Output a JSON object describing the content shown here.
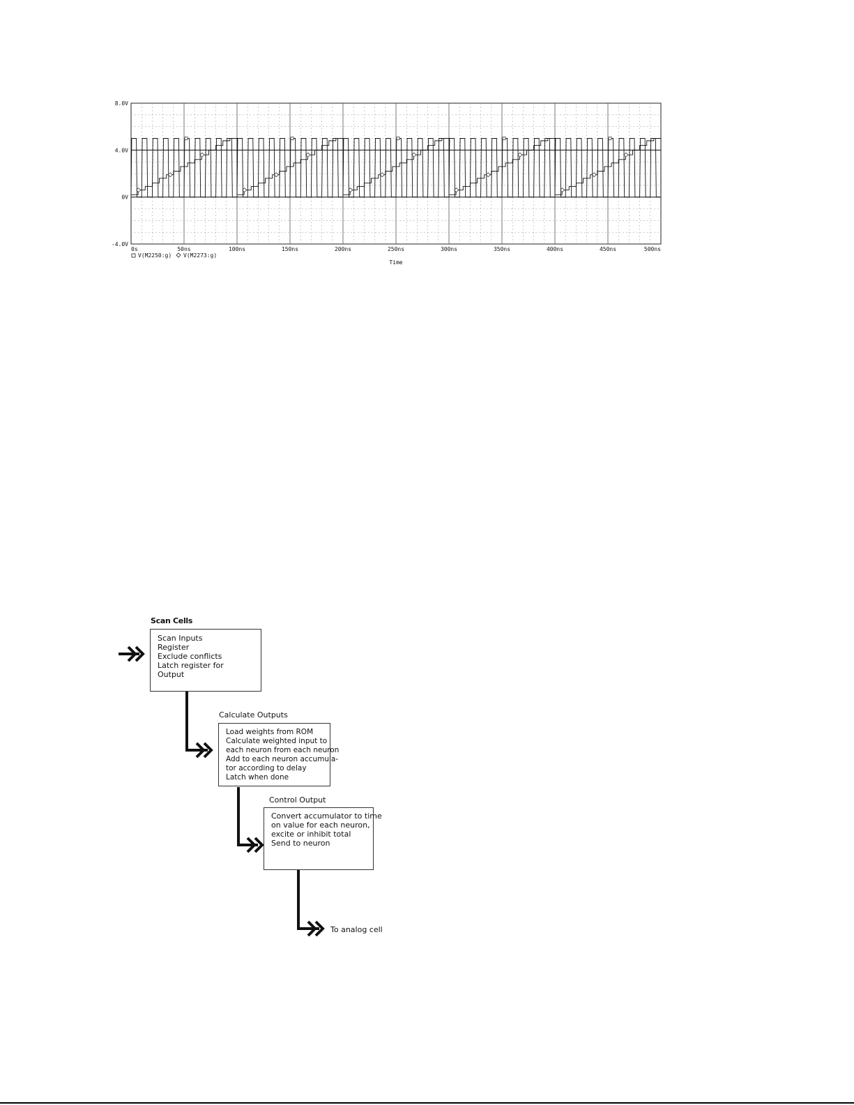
{
  "chart_data": {
    "type": "line",
    "xlabel": "Time",
    "ylabel": "",
    "xlim": [
      0,
      500
    ],
    "ylim": [
      -4,
      8
    ],
    "x_ticks": [
      "0s",
      "50ns",
      "100ns",
      "150ns",
      "200ns",
      "250ns",
      "300ns",
      "350ns",
      "400ns",
      "450ns",
      "500ns"
    ],
    "y_ticks": [
      "8.0V",
      "4.0V",
      "0V",
      "-4.0V"
    ],
    "x_tick_values": [
      0,
      50,
      100,
      150,
      200,
      250,
      300,
      350,
      400,
      450,
      500
    ],
    "y_tick_values": [
      8,
      4,
      0,
      -4
    ],
    "grid": true,
    "legend_position": "bottom-left",
    "series": [
      {
        "name": "V(M2250:g)",
        "marker": "square",
        "kind": "square-wave",
        "low": 0,
        "high": 5,
        "period_ns": 10
      },
      {
        "name": "V(M2273:g)",
        "marker": "diamond",
        "kind": "staircase",
        "period_ns": 100,
        "step_levels": [
          0.2,
          0.6,
          0.9,
          1.2,
          1.6,
          1.9,
          2.2,
          2.6,
          2.9,
          3.2,
          3.6,
          4.0,
          4.4,
          4.8,
          5.0
        ]
      }
    ]
  },
  "flowchart": {
    "scan": {
      "title": "Scan Cells",
      "lines": [
        "Scan Inputs",
        "Register",
        "Exclude conflicts",
        "Latch register for",
        "Output"
      ]
    },
    "calc": {
      "title": "Calculate Outputs",
      "lines": [
        "Load weights from ROM",
        "Calculate weighted input to",
        "each neuron from each neuron",
        "Add to each neuron accumula-",
        "tor according to delay",
        "Latch when done"
      ]
    },
    "control": {
      "title": "Control Output",
      "lines": [
        "Convert accumulator to time",
        "on value for each neuron,",
        "excite or inhibit total",
        "Send to neuron"
      ]
    },
    "final_label": "To analog cell"
  }
}
